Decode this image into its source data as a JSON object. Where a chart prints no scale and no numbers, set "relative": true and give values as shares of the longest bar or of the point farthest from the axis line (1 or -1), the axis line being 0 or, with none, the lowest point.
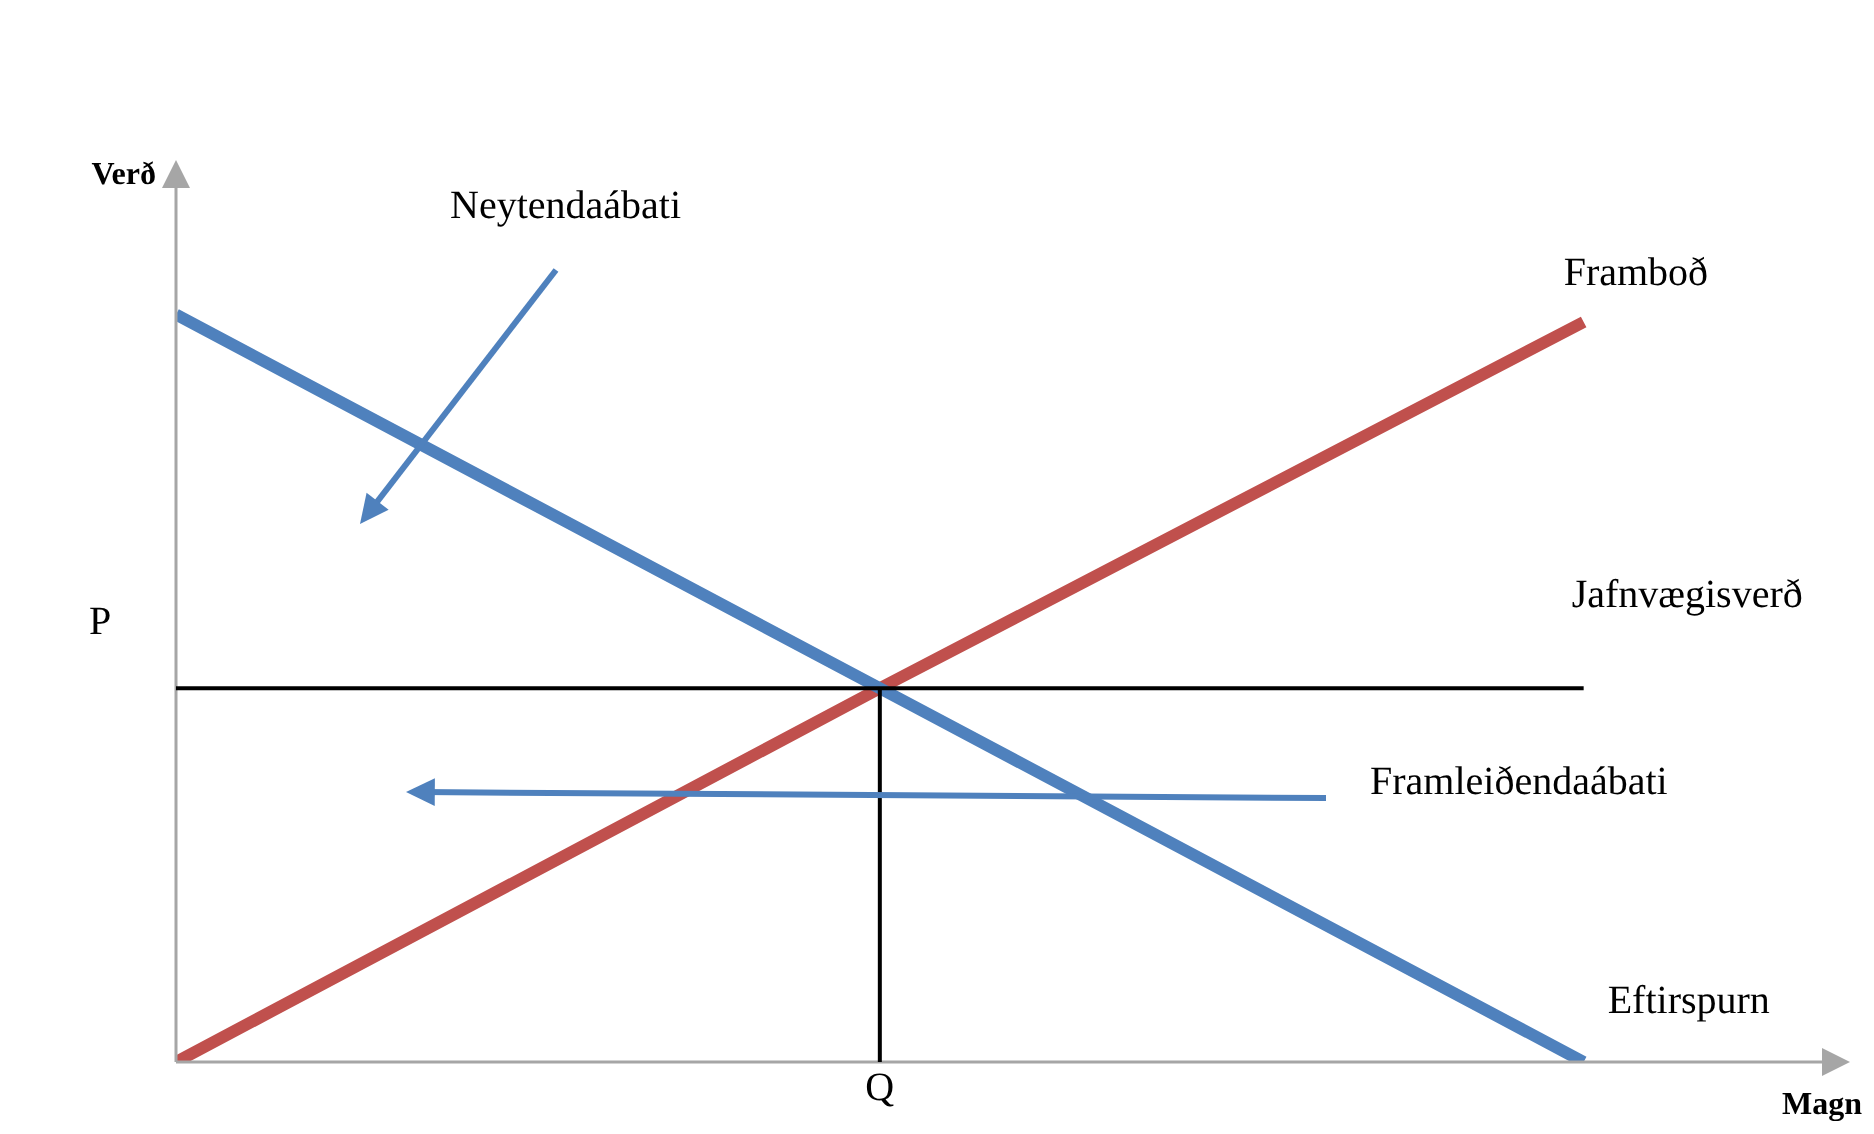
{
  "chart_data": {
    "type": "line",
    "relative": true,
    "ylabel": "Verð",
    "xlabel": "Magn",
    "categories": [
      null,
      null,
      null
    ],
    "series": [
      {
        "name": "Eftirspurn",
        "color": "#4f81bd",
        "values": [
          1,
          0.5,
          0
        ]
      },
      {
        "name": "Framboð",
        "color": "#c0504d",
        "values": [
          0,
          0.5,
          0.99
        ]
      }
    ],
    "ref_lines": [
      {
        "axis": "y",
        "value": 0.5,
        "label": "Jafnvægisverð",
        "color": "#000000"
      }
    ],
    "annotations": [
      "P",
      "Q",
      "Neytendaábati",
      "Framleiðendaábati"
    ]
  }
}
